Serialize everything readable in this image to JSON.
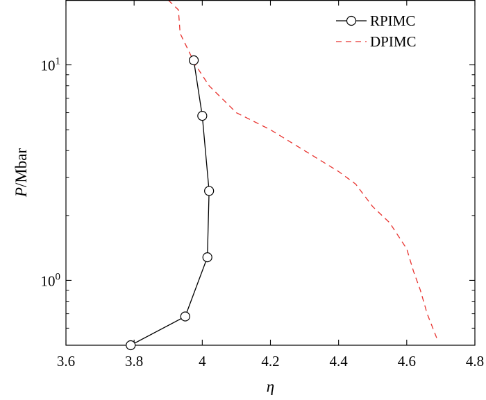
{
  "chart_data": {
    "type": "line",
    "title": "",
    "xlabel": "η",
    "ylabel": {
      "italic": "P",
      "rest": "/Mbar"
    },
    "xlim": [
      3.6,
      4.8
    ],
    "ylim": [
      0.5,
      20
    ],
    "yscale": "log",
    "x_ticks": [
      {
        "value": 3.6,
        "label": "3.6"
      },
      {
        "value": 3.8,
        "label": "3.8"
      },
      {
        "value": 4.0,
        "label": "4"
      },
      {
        "value": 4.2,
        "label": "4.2"
      },
      {
        "value": 4.4,
        "label": "4.4"
      },
      {
        "value": 4.6,
        "label": "4.6"
      },
      {
        "value": 4.8,
        "label": "4.8"
      }
    ],
    "y_major_ticks": [
      {
        "value": 1,
        "base": "10",
        "exp": "0"
      },
      {
        "value": 10,
        "base": "10",
        "exp": "1"
      }
    ],
    "y_minor_ticks": [
      0.5,
      0.6,
      0.7,
      0.8,
      0.9,
      2,
      3,
      4,
      5,
      6,
      7,
      8,
      9,
      20
    ],
    "grid": false,
    "legend_position": "top-right",
    "series": [
      {
        "name": "RPIMC",
        "style": "solid",
        "marker": "circle",
        "color": "#000000",
        "points": [
          [
            3.79,
            0.5
          ],
          [
            3.95,
            0.68
          ],
          [
            4.015,
            1.28
          ],
          [
            4.02,
            2.6
          ],
          [
            4.0,
            5.8
          ],
          [
            3.975,
            10.5
          ]
        ]
      },
      {
        "name": "DPIMC",
        "style": "dashed",
        "marker": "none",
        "color": "#e8322e",
        "points": [
          [
            3.9,
            20
          ],
          [
            3.93,
            18
          ],
          [
            3.935,
            14
          ],
          [
            3.98,
            10
          ],
          [
            4.02,
            8
          ],
          [
            4.1,
            6
          ],
          [
            4.2,
            5
          ],
          [
            4.3,
            4
          ],
          [
            4.4,
            3.2
          ],
          [
            4.45,
            2.8
          ],
          [
            4.5,
            2.2
          ],
          [
            4.55,
            1.85
          ],
          [
            4.6,
            1.4
          ],
          [
            4.62,
            1.1
          ],
          [
            4.64,
            0.9
          ],
          [
            4.66,
            0.7
          ],
          [
            4.69,
            0.53
          ]
        ]
      }
    ]
  }
}
